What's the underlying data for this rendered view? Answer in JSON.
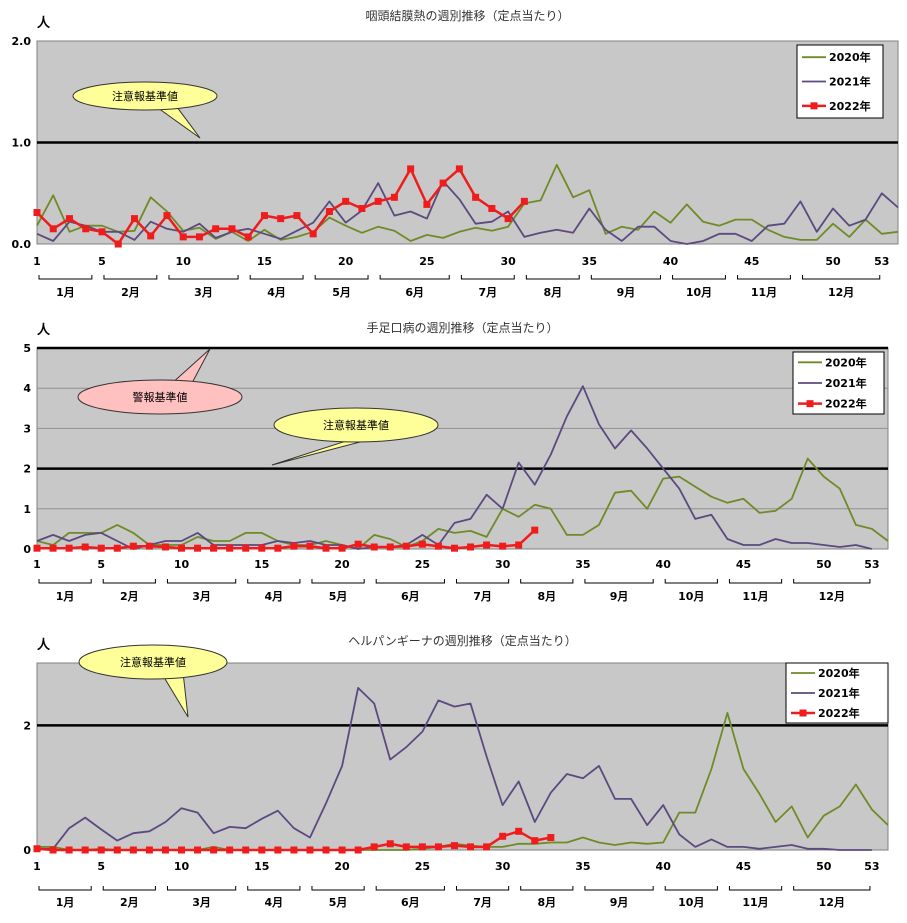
{
  "chart_data": [
    {
      "type": "line",
      "title": "咽頭結膜熱の週別推移（定点当たり）",
      "ylabel": "人",
      "ylim": [
        0,
        2
      ],
      "y_ticks": [
        "0.0",
        "1.0",
        "2.0"
      ],
      "x_ticks": [
        "1",
        "5",
        "10",
        "15",
        "20",
        "25",
        "30",
        "35",
        "40",
        "45",
        "50",
        "53"
      ],
      "months": [
        "1月",
        "2月",
        "3月",
        "4月",
        "5月",
        "6月",
        "7月",
        "8月",
        "9月",
        "10月",
        "11月",
        "12月"
      ],
      "grid": false,
      "legend": "top-right",
      "thresholds": [
        {
          "label": "注意報基準値",
          "value": 1.0
        }
      ],
      "series": [
        {
          "name": "2020年",
          "color": "#6e8b28",
          "values": [
            0.18,
            0.48,
            0.12,
            0.18,
            0.18,
            0.12,
            0.13,
            0.46,
            0.32,
            0.13,
            0.16,
            0.05,
            0.12,
            0.03,
            0.14,
            0.04,
            0.07,
            0.12,
            0.26,
            0.18,
            0.11,
            0.17,
            0.13,
            0.03,
            0.09,
            0.06,
            0.12,
            0.16,
            0.13,
            0.17,
            0.4,
            0.43,
            0.78,
            0.46,
            0.53,
            0.1,
            0.17,
            0.14,
            0.32,
            0.21,
            0.39,
            0.22,
            0.18,
            0.24,
            0.24,
            0.14,
            0.07,
            0.04,
            0.04,
            0.2,
            0.07,
            0.24,
            0.1,
            0.12
          ]
        },
        {
          "name": "2021年",
          "color": "#5b4a7f",
          "values": [
            0.1,
            0.03,
            0.22,
            0.18,
            0.12,
            0.12,
            0.04,
            0.22,
            0.15,
            0.12,
            0.2,
            0.06,
            0.12,
            0.15,
            0.1,
            0.05,
            0.13,
            0.21,
            0.42,
            0.21,
            0.33,
            0.6,
            0.28,
            0.32,
            0.25,
            0.62,
            0.44,
            0.2,
            0.22,
            0.32,
            0.07,
            0.11,
            0.14,
            0.11,
            0.35,
            0.14,
            0.03,
            0.17,
            0.17,
            0.03,
            0.0,
            0.03,
            0.1,
            0.1,
            0.03,
            0.18,
            0.2,
            0.42,
            0.12,
            0.35,
            0.18,
            0.24,
            0.5,
            0.36
          ]
        },
        {
          "name": "2022年",
          "color": "#ee1c1c",
          "values": [
            0.31,
            0.15,
            0.25,
            0.15,
            0.12,
            0.0,
            0.25,
            0.08,
            0.28,
            0.07,
            0.07,
            0.15,
            0.15,
            0.07,
            0.28,
            0.25,
            0.28,
            0.1,
            0.32,
            0.42,
            0.35,
            0.42,
            0.46,
            0.74,
            0.39,
            0.6,
            0.74,
            0.46,
            0.35,
            0.25,
            0.42
          ]
        }
      ]
    },
    {
      "type": "line",
      "title": "手足口病の週別推移（定点当たり）",
      "ylabel": "人",
      "ylim": [
        0,
        5
      ],
      "y_ticks": [
        "0",
        "1",
        "2",
        "3",
        "4",
        "5"
      ],
      "x_ticks": [
        "1",
        "5",
        "10",
        "15",
        "20",
        "25",
        "30",
        "35",
        "40",
        "45",
        "50",
        "53"
      ],
      "months": [
        "1月",
        "2月",
        "3月",
        "4月",
        "5月",
        "6月",
        "7月",
        "8月",
        "9月",
        "10月",
        "11月",
        "12月"
      ],
      "grid": true,
      "legend": "top-right",
      "thresholds": [
        {
          "label": "警報基準値",
          "value": 5.0
        },
        {
          "label": "注意報基準値",
          "value": 2.0
        }
      ],
      "series": [
        {
          "name": "2020年",
          "color": "#6e8b28",
          "values": [
            0.2,
            0.1,
            0.4,
            0.4,
            0.4,
            0.6,
            0.4,
            0.1,
            0.1,
            0.1,
            0.3,
            0.2,
            0.2,
            0.4,
            0.4,
            0.2,
            0.1,
            0.1,
            0.2,
            0.1,
            0.0,
            0.35,
            0.25,
            0.05,
            0.2,
            0.5,
            0.4,
            0.45,
            0.3,
            1.0,
            0.8,
            1.1,
            1.0,
            0.35,
            0.35,
            0.6,
            1.4,
            1.45,
            1.0,
            1.75,
            1.8,
            1.55,
            1.3,
            1.15,
            1.25,
            0.9,
            0.95,
            1.25,
            2.25,
            1.8,
            1.5,
            0.6,
            0.5,
            0.2
          ]
        },
        {
          "name": "2021年",
          "color": "#5b4a7f",
          "values": [
            0.2,
            0.35,
            0.2,
            0.35,
            0.4,
            0.2,
            0.0,
            0.1,
            0.2,
            0.2,
            0.4,
            0.1,
            0.1,
            0.1,
            0.1,
            0.2,
            0.15,
            0.2,
            0.1,
            0.1,
            0.0,
            0.05,
            0.05,
            0.1,
            0.35,
            0.1,
            0.65,
            0.75,
            1.35,
            1.0,
            2.15,
            1.6,
            2.35,
            3.3,
            4.05,
            3.1,
            2.5,
            2.95,
            2.5,
            2.0,
            1.5,
            0.75,
            0.85,
            0.25,
            0.1,
            0.1,
            0.25,
            0.15,
            0.15,
            0.1,
            0.05,
            0.1,
            0.0
          ]
        },
        {
          "name": "2022年",
          "color": "#ee1c1c",
          "values": [
            0.02,
            0.02,
            0.02,
            0.05,
            0.02,
            0.02,
            0.07,
            0.07,
            0.05,
            0.02,
            0.02,
            0.02,
            0.02,
            0.02,
            0.02,
            0.02,
            0.07,
            0.07,
            0.02,
            0.02,
            0.12,
            0.05,
            0.05,
            0.07,
            0.12,
            0.07,
            0.02,
            0.05,
            0.1,
            0.07,
            0.1,
            0.47
          ]
        }
      ]
    },
    {
      "type": "line",
      "title": "ヘルパンギーナの週別推移（定点当たり）",
      "ylabel": "人",
      "ylim": [
        0,
        3
      ],
      "y_ticks": [
        "0",
        "2"
      ],
      "x_ticks": [
        "1",
        "5",
        "10",
        "15",
        "20",
        "25",
        "30",
        "35",
        "40",
        "45",
        "50",
        "53"
      ],
      "months": [
        "1月",
        "2月",
        "3月",
        "4月",
        "5月",
        "6月",
        "7月",
        "8月",
        "9月",
        "10月",
        "11月",
        "12月"
      ],
      "grid": false,
      "legend": "top-right",
      "thresholds": [
        {
          "label": "注意報基準値",
          "value": 2.0
        }
      ],
      "series": [
        {
          "name": "2020年",
          "color": "#6e8b28",
          "values": [
            0.05,
            0.05,
            0.0,
            0.0,
            0.02,
            0.0,
            0.0,
            0.0,
            0.0,
            0.0,
            0.0,
            0.05,
            0.0,
            0.0,
            0.0,
            0.0,
            0.0,
            0.0,
            0.0,
            0.0,
            0.0,
            0.0,
            0.0,
            0.0,
            0.02,
            0.05,
            0.1,
            0.07,
            0.05,
            0.05,
            0.1,
            0.1,
            0.12,
            0.12,
            0.2,
            0.12,
            0.08,
            0.12,
            0.1,
            0.12,
            0.6,
            0.6,
            1.3,
            2.2,
            1.3,
            0.9,
            0.45,
            0.7,
            0.2,
            0.55,
            0.7,
            1.05,
            0.65,
            0.4
          ]
        },
        {
          "name": "2021年",
          "color": "#5b4a7f",
          "values": [
            0.02,
            0.02,
            0.35,
            0.52,
            0.33,
            0.15,
            0.27,
            0.3,
            0.45,
            0.67,
            0.6,
            0.27,
            0.37,
            0.35,
            0.5,
            0.63,
            0.35,
            0.2,
            0.75,
            1.35,
            2.6,
            2.35,
            1.45,
            1.65,
            1.9,
            2.4,
            2.3,
            2.35,
            1.5,
            0.72,
            1.1,
            0.45,
            0.92,
            1.22,
            1.15,
            1.35,
            0.82,
            0.82,
            0.4,
            0.72,
            0.25,
            0.05,
            0.17,
            0.05,
            0.05,
            0.02,
            0.05,
            0.08,
            0.02,
            0.02,
            0.0,
            0.0,
            0.0
          ]
        },
        {
          "name": "2022年",
          "color": "#ee1c1c",
          "values": [
            0.02,
            0.0,
            0.0,
            0.0,
            0.0,
            0.0,
            0.0,
            0.0,
            0.0,
            0.0,
            0.0,
            0.0,
            0.0,
            0.0,
            0.0,
            0.0,
            0.0,
            0.0,
            0.0,
            0.0,
            0.0,
            0.05,
            0.1,
            0.05,
            0.05,
            0.05,
            0.07,
            0.05,
            0.05,
            0.22,
            0.3,
            0.15,
            0.2
          ]
        }
      ]
    }
  ]
}
